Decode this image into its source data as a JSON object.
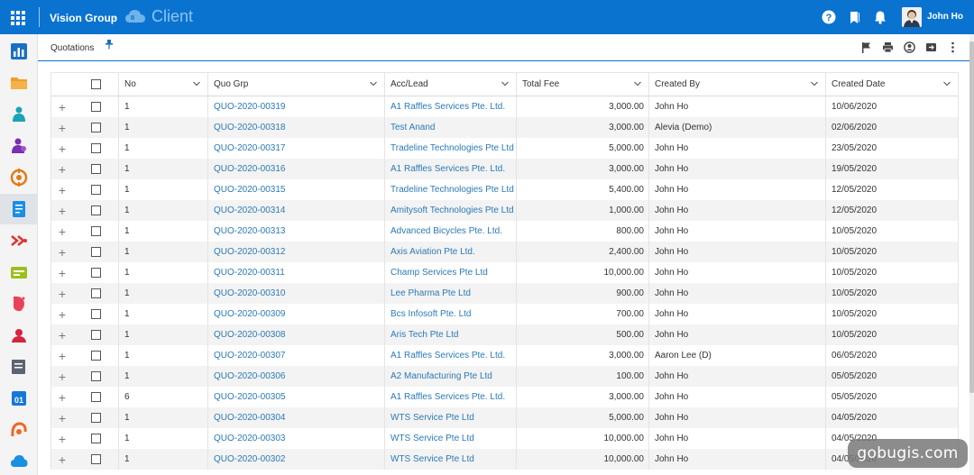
{
  "header": {
    "brand": "Vision Group",
    "separator": "-",
    "app_title": "Client",
    "user_name": "John Ho"
  },
  "toolbar": {
    "breadcrumb": "Quotations"
  },
  "table": {
    "columns": [
      "No",
      "Quo Grp",
      "Acc/Lead",
      "Total Fee",
      "Created By",
      "Created Date"
    ],
    "rows": [
      {
        "no": "1",
        "quo": "QUO-2020-00319",
        "acc": "A1 Raffles Services Pte. Ltd.",
        "fee": "3,000.00",
        "by": "John Ho",
        "date": "10/06/2020"
      },
      {
        "no": "1",
        "quo": "QUO-2020-00318",
        "acc": "Test Anand",
        "fee": "3,000.00",
        "by": "Alevia (Demo)",
        "date": "02/06/2020"
      },
      {
        "no": "1",
        "quo": "QUO-2020-00317",
        "acc": "Tradeline Technologies Pte Ltd",
        "fee": "5,000.00",
        "by": "John Ho",
        "date": "23/05/2020"
      },
      {
        "no": "1",
        "quo": "QUO-2020-00316",
        "acc": "A1 Raffles Services Pte. Ltd.",
        "fee": "3,000.00",
        "by": "John Ho",
        "date": "19/05/2020"
      },
      {
        "no": "1",
        "quo": "QUO-2020-00315",
        "acc": "Tradeline Technologies Pte Ltd",
        "fee": "5,400.00",
        "by": "John Ho",
        "date": "12/05/2020"
      },
      {
        "no": "1",
        "quo": "QUO-2020-00314",
        "acc": "Amitysoft Technologies Pte Ltd",
        "fee": "1,000.00",
        "by": "John Ho",
        "date": "12/05/2020"
      },
      {
        "no": "1",
        "quo": "QUO-2020-00313",
        "acc": "Advanced Bicycles Pte. Ltd.",
        "fee": "800.00",
        "by": "John Ho",
        "date": "10/05/2020"
      },
      {
        "no": "1",
        "quo": "QUO-2020-00312",
        "acc": "Axis Aviation Pte Ltd.",
        "fee": "2,400.00",
        "by": "John Ho",
        "date": "10/05/2020"
      },
      {
        "no": "1",
        "quo": "QUO-2020-00311",
        "acc": "Champ Services Pte Ltd",
        "fee": "10,000.00",
        "by": "John Ho",
        "date": "10/05/2020"
      },
      {
        "no": "1",
        "quo": "QUO-2020-00310",
        "acc": "Lee Pharma Pte Ltd",
        "fee": "900.00",
        "by": "John Ho",
        "date": "10/05/2020"
      },
      {
        "no": "1",
        "quo": "QUO-2020-00309",
        "acc": "Bcs Infosoft Pte. Ltd",
        "fee": "700.00",
        "by": "John Ho",
        "date": "10/05/2020"
      },
      {
        "no": "1",
        "quo": "QUO-2020-00308",
        "acc": "Aris Tech Pte Ltd",
        "fee": "500.00",
        "by": "John Ho",
        "date": "10/05/2020"
      },
      {
        "no": "1",
        "quo": "QUO-2020-00307",
        "acc": "A1 Raffles Services Pte. Ltd.",
        "fee": "3,000.00",
        "by": "Aaron Lee (D)",
        "date": "06/05/2020"
      },
      {
        "no": "1",
        "quo": "QUO-2020-00306",
        "acc": "A2 Manufacturing Pte Ltd",
        "fee": "100.00",
        "by": "John Ho",
        "date": "05/05/2020"
      },
      {
        "no": "6",
        "quo": "QUO-2020-00305",
        "acc": "A1 Raffles Services Pte. Ltd.",
        "fee": "3,000.00",
        "by": "John Ho",
        "date": "05/05/2020"
      },
      {
        "no": "1",
        "quo": "QUO-2020-00304",
        "acc": "WTS Service Pte Ltd",
        "fee": "5,000.00",
        "by": "John Ho",
        "date": "04/05/2020"
      },
      {
        "no": "1",
        "quo": "QUO-2020-00303",
        "acc": "WTS Service Pte Ltd",
        "fee": "10,000.00",
        "by": "John Ho",
        "date": "04/05/2020"
      },
      {
        "no": "1",
        "quo": "QUO-2020-00302",
        "acc": "WTS Service Pte Ltd",
        "fee": "10,000.00",
        "by": "John Ho",
        "date": "04/05/2020"
      }
    ]
  },
  "watermark": "gobugis.com",
  "colors": {
    "header_bg": "#0a73cf",
    "link": "#2a7ab8",
    "row_alt": "#f3f3f3"
  }
}
